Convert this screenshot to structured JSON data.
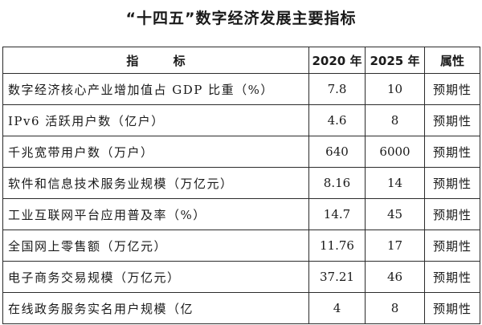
{
  "title": "“十四五”数字经济发展主要指标",
  "table": {
    "headers": {
      "indicator": "指 标",
      "y2020": "2020 年",
      "y2025": "2025 年",
      "attribute": "属性"
    },
    "rows": [
      {
        "name": "数字经济核心产业增加值占 GDP 比重（%）",
        "y2020": "7.8",
        "y2025": "10",
        "attribute": "预期性"
      },
      {
        "name": "IPv6 活跃用户数（亿户）",
        "y2020": "4.6",
        "y2025": "8",
        "attribute": "预期性"
      },
      {
        "name": "千兆宽带用户数（万户）",
        "y2020": "640",
        "y2025": "6000",
        "attribute": "预期性"
      },
      {
        "name": "软件和信息技术服务业规模（万亿元）",
        "y2020": "8.16",
        "y2025": "14",
        "attribute": "预期性"
      },
      {
        "name": "工业互联网平台应用普及率（%）",
        "y2020": "14.7",
        "y2025": "45",
        "attribute": "预期性"
      },
      {
        "name": "全国网上零售额（万亿元）",
        "y2020": "11.76",
        "y2025": "17",
        "attribute": "预期性"
      },
      {
        "name": "电子商务交易规模（万亿元）",
        "y2020": "37.21",
        "y2025": "46",
        "attribute": "预期性"
      },
      {
        "name": "在线政务服务实名用户规模（亿",
        "y2020": "4",
        "y2025": "8",
        "attribute": "预期性"
      }
    ]
  }
}
